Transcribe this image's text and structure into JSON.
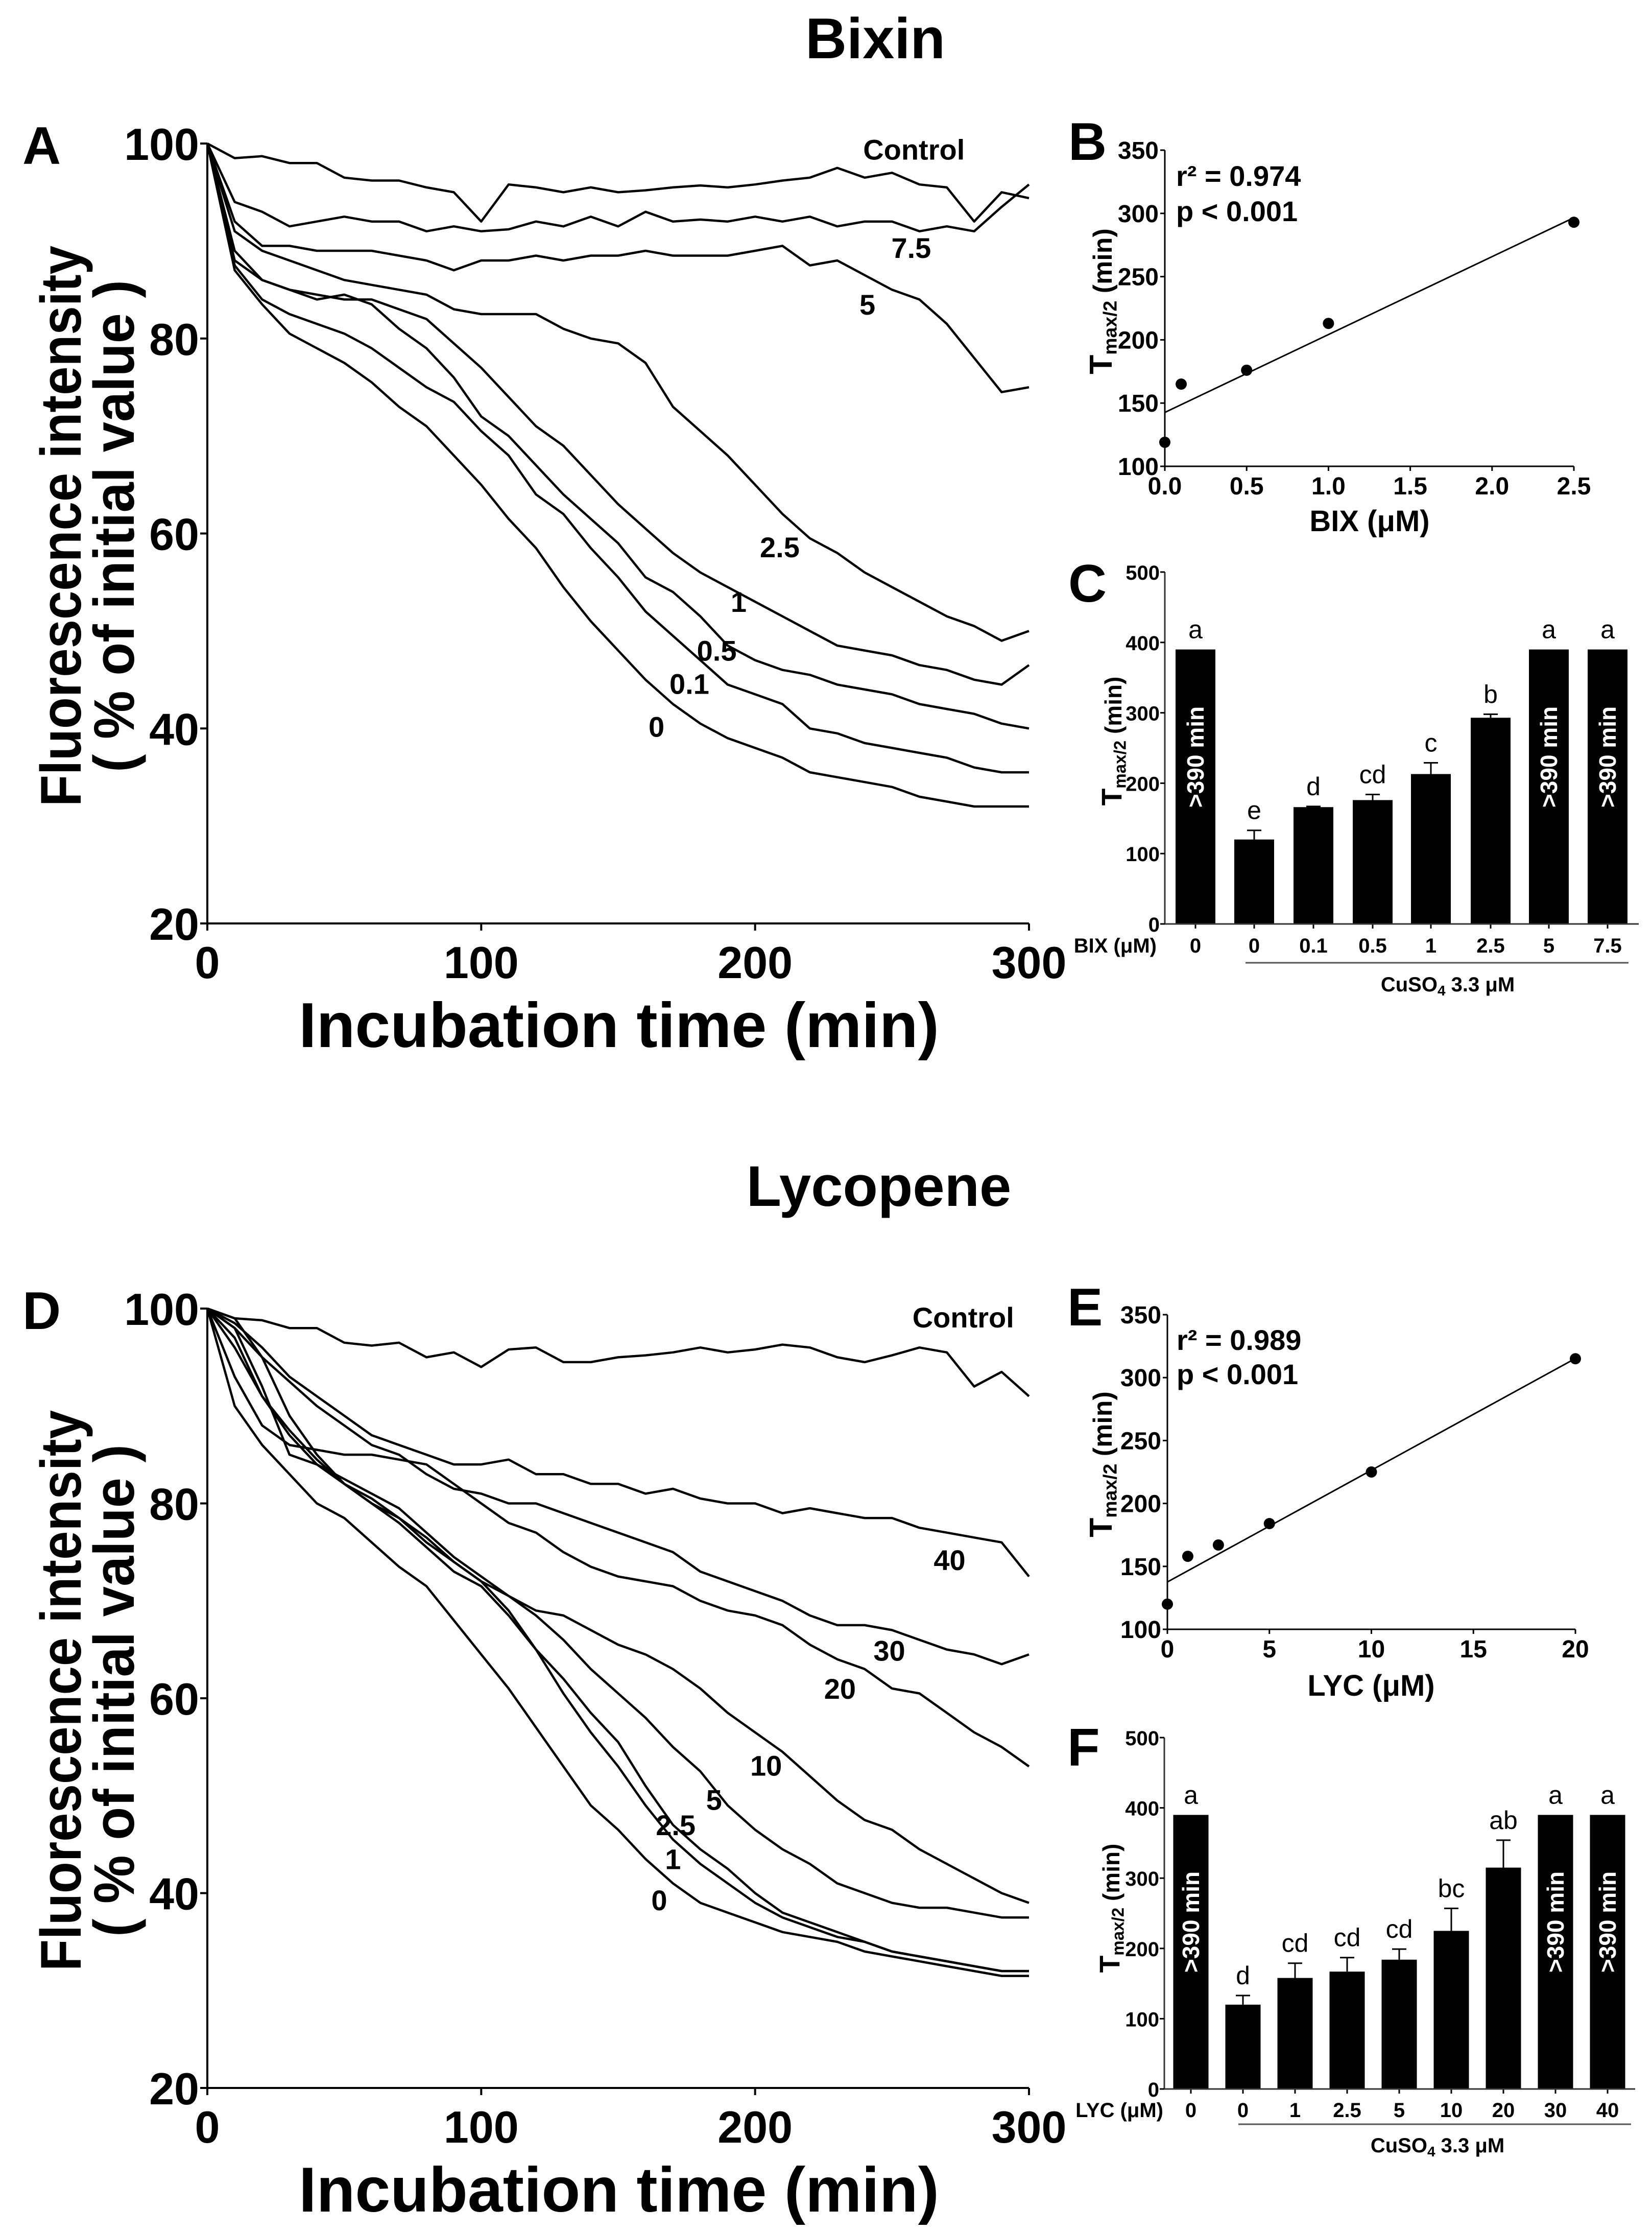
{
  "chart_data": [
    {
      "type": "line",
      "panel_label": "A",
      "title": "Bixin",
      "xlabel": "Incubation time (min)",
      "ylabel_line1": "Fluorescence intensity",
      "ylabel_line2": "( % of initial value )",
      "xlim": [
        0,
        300
      ],
      "ylim": [
        20,
        100
      ],
      "xticks": [
        "0",
        "100",
        "200",
        "300"
      ],
      "yticks": [
        "20",
        "40",
        "60",
        "80",
        "100"
      ],
      "x": [
        0,
        10,
        20,
        30,
        40,
        50,
        60,
        70,
        80,
        90,
        100,
        110,
        120,
        130,
        140,
        150,
        160,
        170,
        180,
        190,
        200,
        210,
        220,
        230,
        240,
        250,
        260,
        270,
        280,
        290,
        300
      ],
      "series": [
        {
          "name": "Control",
          "values": [
            100,
            98.5,
            98.7,
            98,
            98,
            96.5,
            96.2,
            96.2,
            95.5,
            95,
            92,
            95.8,
            95.5,
            95,
            95.5,
            95,
            95.2,
            95.5,
            95.7,
            95.5,
            95.8,
            96.2,
            96.5,
            97.5,
            96.5,
            97,
            95.8,
            95.5,
            92,
            95,
            94.4
          ]
        },
        {
          "name": "7.5",
          "values": [
            100,
            94,
            93,
            91.5,
            92,
            92.5,
            92,
            92,
            91,
            91.5,
            91,
            91.2,
            92,
            91.5,
            92.5,
            91.5,
            93,
            92,
            92.2,
            92,
            92.5,
            92,
            92.5,
            91.5,
            92,
            92,
            91,
            91.5,
            91,
            93.5,
            95.8
          ]
        },
        {
          "name": "5",
          "values": [
            100,
            92,
            89.5,
            89.5,
            89,
            89,
            89,
            88.5,
            88,
            87,
            88,
            88,
            88.5,
            88,
            88.5,
            88.5,
            89,
            88.5,
            88.5,
            88.5,
            89,
            89.5,
            87.5,
            88,
            86.5,
            85,
            84,
            81.5,
            78,
            74.5,
            75
          ]
        },
        {
          "name": "2.5",
          "values": [
            100,
            91,
            89,
            88,
            87,
            86,
            85.5,
            85,
            84.5,
            83,
            82.5,
            82.5,
            82.5,
            81,
            80,
            79.5,
            77.5,
            73,
            70.5,
            68,
            65,
            62,
            59.5,
            58,
            56,
            54.5,
            53,
            51.5,
            50.5,
            49,
            50
          ]
        },
        {
          "name": "1",
          "values": [
            100,
            89,
            86,
            85,
            84.5,
            84,
            84,
            83,
            82,
            79.5,
            77,
            74,
            71,
            69,
            66,
            63,
            60.5,
            58,
            56,
            54.5,
            53,
            51.5,
            50,
            48.5,
            48,
            47.5,
            46.5,
            46,
            45,
            44.5,
            46.5
          ]
        },
        {
          "name": "0.5",
          "values": [
            100,
            88,
            86,
            85,
            84,
            84.5,
            83.5,
            81,
            79,
            76,
            72,
            70,
            67,
            64,
            61.5,
            59,
            55.5,
            54,
            51.5,
            48.5,
            47,
            46,
            45.5,
            44.5,
            44,
            43.5,
            42.5,
            42,
            41.5,
            40.5,
            40
          ]
        },
        {
          "name": "0.1",
          "values": [
            100,
            87.5,
            84,
            82.5,
            81.5,
            80.5,
            79,
            77,
            75,
            73.5,
            70.5,
            68,
            64,
            62,
            58.5,
            55.5,
            52,
            49.5,
            47,
            44.5,
            43.5,
            42.5,
            40,
            39.5,
            38.5,
            38,
            37.5,
            37,
            36,
            35.5,
            35.5
          ]
        },
        {
          "name": "0",
          "values": [
            100,
            87,
            83.5,
            80.5,
            79,
            77.5,
            75.5,
            73,
            71,
            68,
            65,
            61.5,
            58.5,
            54.5,
            51,
            48,
            45,
            42.5,
            40.5,
            39,
            38,
            37,
            35.5,
            35,
            34.5,
            34,
            33,
            32.5,
            32,
            32,
            32
          ]
        }
      ]
    },
    {
      "type": "scatter",
      "panel_label": "B",
      "xlabel": "BIX (μM)",
      "ylabel": {
        "main": "T",
        "sub": "max/2",
        "suffix": " (min)"
      },
      "xlim": [
        0,
        2.5
      ],
      "ylim": [
        100,
        350
      ],
      "xticks": [
        "0.0",
        "0.5",
        "1.0",
        "1.5",
        "2.0",
        "2.5"
      ],
      "yticks": [
        "100",
        "150",
        "200",
        "250",
        "300",
        "350"
      ],
      "points": {
        "x": [
          0,
          0.1,
          0.5,
          1.0,
          2.5
        ],
        "y": [
          119,
          165,
          176,
          213,
          293
        ]
      },
      "fit": {
        "intercept": 142.6,
        "slope": 61.6
      },
      "annotations": [
        "r² = 0.974",
        "p < 0.001"
      ]
    },
    {
      "type": "bar",
      "panel_label": "C",
      "ylabel": {
        "main": "T",
        "sub": "max/2",
        "suffix": " (min)"
      },
      "ylim": [
        0,
        500
      ],
      "yticks": [
        "0",
        "100",
        "200",
        "300",
        "400",
        "500"
      ],
      "category_axis_label": "BIX (μM)",
      "categories": [
        "0",
        "0",
        "0.1",
        "0.5",
        "1",
        "2.5",
        "5",
        "7.5"
      ],
      "values": [
        390,
        120,
        166,
        176,
        213,
        293,
        390,
        390
      ],
      "error_upper": [
        0,
        13,
        1,
        8,
        16,
        5,
        0,
        0
      ],
      "letters": [
        "a",
        "e",
        "d",
        "cd",
        "c",
        "b",
        "a",
        "a"
      ],
      "bar_text": [
        ">390 min",
        "",
        "",
        "",
        "",
        "",
        ">390 min",
        ">390 min"
      ],
      "group_label": {
        "main": "CuSO",
        "sub": "4",
        "suffix": " 3.3 μM"
      }
    },
    {
      "type": "line",
      "panel_label": "D",
      "title": "Lycopene",
      "xlabel": "Incubation time (min)",
      "ylabel_line1": "Fluorescence intensity",
      "ylabel_line2": "( % of initial value )",
      "xlim": [
        0,
        300
      ],
      "ylim": [
        20,
        100
      ],
      "xticks": [
        "0",
        "100",
        "200",
        "300"
      ],
      "yticks": [
        "20",
        "40",
        "60",
        "80",
        "100"
      ],
      "x": [
        0,
        10,
        20,
        30,
        40,
        50,
        60,
        70,
        80,
        90,
        100,
        110,
        120,
        130,
        140,
        150,
        160,
        170,
        180,
        190,
        200,
        210,
        220,
        230,
        240,
        250,
        260,
        270,
        280,
        290,
        300
      ],
      "series": [
        {
          "name": "Control",
          "values": [
            100,
            99,
            98.8,
            98,
            98,
            96.5,
            96.2,
            96.5,
            95,
            95.5,
            94,
            95.8,
            96,
            94.5,
            94.5,
            95,
            95.2,
            95.5,
            96,
            95.5,
            95.8,
            96.3,
            96,
            95,
            94.5,
            95.2,
            96,
            95.5,
            92,
            93.5,
            91
          ]
        },
        {
          "name": "40",
          "values": [
            100,
            98.5,
            96,
            93,
            91,
            89,
            87,
            86,
            85,
            84,
            84,
            84.5,
            83,
            83,
            82,
            82,
            81,
            81.5,
            80.5,
            80,
            80,
            79,
            79.5,
            79,
            78.5,
            78.5,
            77.5,
            77,
            76.5,
            76,
            72.5
          ]
        },
        {
          "name": "30",
          "values": [
            100,
            98,
            95,
            92.5,
            90,
            88,
            86,
            85,
            83,
            81.5,
            81,
            80,
            80,
            79,
            78,
            77,
            76,
            75,
            73,
            72,
            71,
            70,
            68.5,
            67.5,
            67.5,
            67,
            66,
            65,
            64.5,
            63.5,
            64.5
          ]
        },
        {
          "name": "20",
          "values": [
            100,
            93,
            88,
            86,
            85.5,
            85,
            85,
            84.5,
            84,
            82,
            80,
            78,
            77,
            75,
            73.5,
            72.5,
            72,
            71.5,
            70,
            69,
            68.5,
            67.5,
            65.5,
            64,
            63,
            61,
            60.5,
            58.5,
            56.5,
            55,
            53
          ]
        },
        {
          "name": "10",
          "values": [
            100,
            96,
            91,
            87.5,
            84.5,
            82,
            80.5,
            78.5,
            76.5,
            74,
            72,
            70.5,
            69,
            68.5,
            67,
            65.5,
            64.5,
            63,
            61,
            58.5,
            56.5,
            54.5,
            52,
            49.5,
            47.5,
            46.5,
            44.5,
            43,
            41.5,
            40,
            39
          ]
        },
        {
          "name": "5",
          "values": [
            100,
            98,
            92,
            85,
            84,
            82.5,
            81,
            79.5,
            77,
            74.5,
            72.5,
            70.5,
            68.5,
            66,
            63,
            60.5,
            58,
            55,
            52.5,
            49,
            46.5,
            44.5,
            43,
            41,
            40,
            39,
            38.5,
            38.5,
            38,
            37.5,
            37.5
          ]
        },
        {
          "name": "2.5",
          "values": [
            100,
            99,
            95,
            89,
            85,
            82,
            80,
            78.5,
            76,
            74,
            72,
            69,
            65,
            62,
            58.5,
            55.5,
            51,
            47,
            44.5,
            42.5,
            40,
            38,
            37,
            36,
            35,
            34,
            33.5,
            33,
            32.5,
            32,
            32
          ]
        },
        {
          "name": "1",
          "values": [
            100,
            97,
            91,
            87,
            84,
            82,
            80,
            78,
            75.5,
            73,
            71.5,
            68.5,
            65,
            60.5,
            56.5,
            53,
            49,
            45.5,
            43,
            41,
            39,
            37.5,
            36.5,
            35.5,
            35,
            34,
            33.5,
            33,
            32.5,
            32,
            32
          ]
        },
        {
          "name": "0",
          "values": [
            100,
            90,
            86,
            83,
            80,
            78.5,
            76,
            73.5,
            71.5,
            68,
            64.5,
            61,
            57,
            53,
            49,
            46.5,
            43.5,
            41,
            39,
            38,
            37,
            36,
            35.5,
            35,
            34,
            33.5,
            33,
            32.5,
            32,
            31.5,
            31.5
          ]
        }
      ]
    },
    {
      "type": "scatter",
      "panel_label": "E",
      "xlabel": "LYC (μM)",
      "ylabel": {
        "main": "T",
        "sub": "max/2",
        "suffix": " (min)"
      },
      "xlim": [
        0,
        20
      ],
      "ylim": [
        100,
        350
      ],
      "xticks": [
        "0",
        "5",
        "10",
        "15",
        "20"
      ],
      "yticks": [
        "100",
        "150",
        "200",
        "250",
        "300",
        "350"
      ],
      "points": {
        "x": [
          0,
          1,
          2.5,
          5,
          10,
          20
        ],
        "y": [
          120,
          158,
          167,
          184,
          225,
          315
        ]
      },
      "fit": {
        "intercept": 137.6,
        "slope": 8.88
      },
      "annotations": [
        "r² = 0.989",
        "p < 0.001"
      ]
    },
    {
      "type": "bar",
      "panel_label": "F",
      "ylabel": {
        "main": "T",
        "sub": "max/2",
        "suffix": " (min)"
      },
      "ylim": [
        0,
        500
      ],
      "yticks": [
        "0",
        "100",
        "200",
        "300",
        "400",
        "500"
      ],
      "category_axis_label": "LYC (μM)",
      "categories": [
        "0",
        "0",
        "1",
        "2.5",
        "5",
        "10",
        "20",
        "30",
        "40"
      ],
      "values": [
        390,
        120,
        158,
        167,
        184,
        225,
        315,
        390,
        390
      ],
      "error_upper": [
        0,
        13,
        21,
        20,
        15,
        32,
        39,
        0,
        0
      ],
      "letters": [
        "a",
        "d",
        "cd",
        "cd",
        "cd",
        "bc",
        "ab",
        "a",
        "a"
      ],
      "bar_text": [
        ">390 min",
        "",
        "",
        "",
        "",
        "",
        "",
        ">390 min",
        ">390 min"
      ],
      "group_label": {
        "main": "CuSO",
        "sub": "4",
        "suffix": " 3.3 μM"
      }
    }
  ]
}
